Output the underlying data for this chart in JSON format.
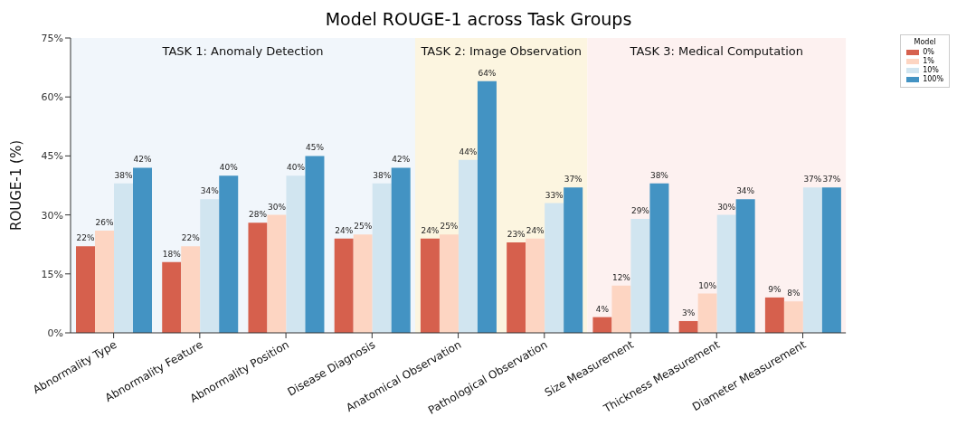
{
  "chart_data": {
    "type": "bar",
    "title": "Model ROUGE-1 across Task Groups",
    "ylabel": "ROUGE-1 (%)",
    "legend_title": "Model",
    "legend": "top right",
    "categories": [
      "Abnormality Type",
      "Abnormality Feature",
      "Abnormality Position",
      "Disease Diagnosis",
      "Anatomical Observation",
      "Pathological Observation",
      "Size Measurement",
      "Thickness Measurement",
      "Diameter Measurement"
    ],
    "series": [
      {
        "name": "0%",
        "color": "#d6604d",
        "values": [
          22,
          18,
          28,
          24,
          24,
          23,
          4,
          3,
          9
        ],
        "value_labels": [
          "22%",
          "18%",
          "28%",
          "24%",
          "24%",
          "23%",
          "4%",
          "3%",
          "9%"
        ]
      },
      {
        "name": "1%",
        "color": "#fdd5c2",
        "values": [
          26,
          22,
          30,
          25,
          25,
          24,
          12,
          10,
          8
        ],
        "value_labels": [
          "26%",
          "22%",
          "30%",
          "25%",
          "25%",
          "24%",
          "12%",
          "10%",
          "8%"
        ]
      },
      {
        "name": "10%",
        "color": "#d1e5f0",
        "values": [
          38,
          34,
          40,
          38,
          44,
          33,
          29,
          30,
          37
        ],
        "value_labels": [
          "38%",
          "34%",
          "40%",
          "38%",
          "44%",
          "33%",
          "29%",
          "30%",
          "37%"
        ]
      },
      {
        "name": "100%",
        "color": "#4393c3",
        "values": [
          42,
          40,
          45,
          42,
          64,
          37,
          38,
          34,
          37
        ],
        "value_labels": [
          "42%",
          "40%",
          "45%",
          "42%",
          "64%",
          "37%",
          "38%",
          "34%",
          "37%"
        ]
      }
    ],
    "ylim": [
      0,
      75
    ],
    "yticks": [
      {
        "value": 0,
        "label": "0%"
      },
      {
        "value": 15,
        "label": "15%"
      },
      {
        "value": 30,
        "label": "30%"
      },
      {
        "value": 45,
        "label": "45%"
      },
      {
        "value": 60,
        "label": "60%"
      },
      {
        "value": 75,
        "label": "75%"
      }
    ],
    "bands": [
      {
        "axis": "x",
        "from": "Abnormality Type",
        "to": "Disease Diagnosis",
        "label": "TASK 1: Anomaly Detection",
        "color": "#f1f6fb"
      },
      {
        "axis": "x",
        "from": "Anatomical Observation",
        "to": "Pathological Observation",
        "label": "TASK 2: Image Observation",
        "color": "#fcf5e0"
      },
      {
        "axis": "x",
        "from": "Size Measurement",
        "to": "Diameter Measurement",
        "label": "TASK 3: Medical Computation",
        "color": "#fdf1f0"
      }
    ]
  }
}
